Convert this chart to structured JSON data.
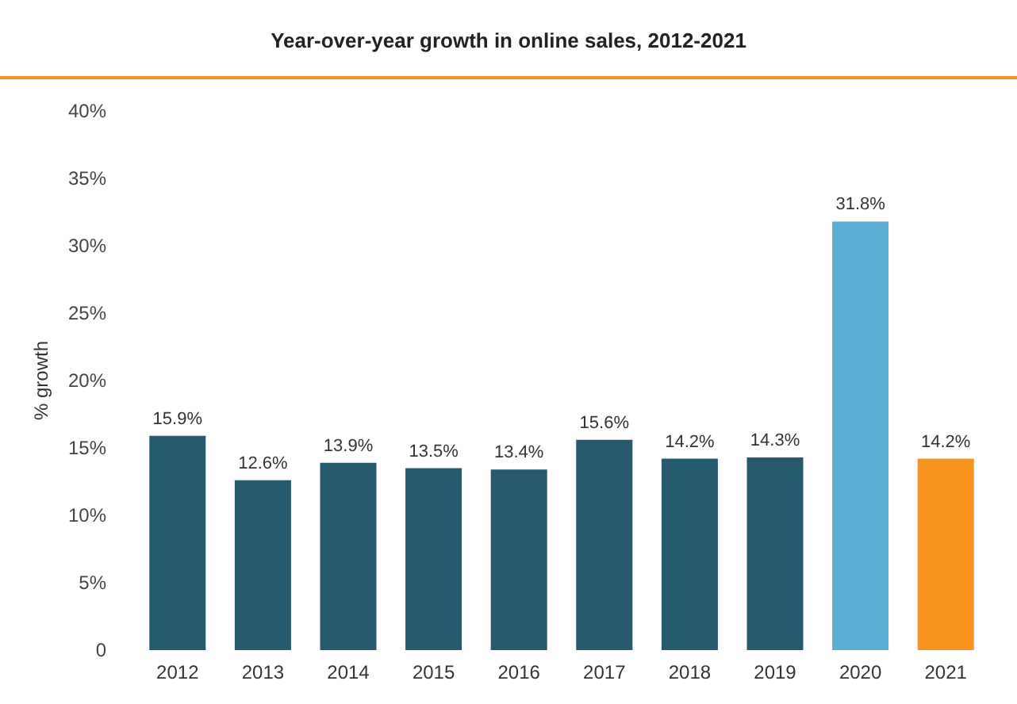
{
  "chart_data": {
    "type": "bar",
    "title": "Year-over-year growth in online sales, 2012-2021",
    "ylabel": "% growth",
    "categories": [
      "2012",
      "2013",
      "2014",
      "2015",
      "2016",
      "2017",
      "2018",
      "2019",
      "2020",
      "2021"
    ],
    "values": [
      15.9,
      12.6,
      13.9,
      13.5,
      13.4,
      15.6,
      14.2,
      14.3,
      31.8,
      14.2
    ],
    "colors": [
      "#24596e",
      "#24596e",
      "#24596e",
      "#24596e",
      "#24596e",
      "#24596e",
      "#24596e",
      "#24596e",
      "#5aaed2",
      "#f7941d"
    ],
    "value_labels": [
      "15.9%",
      "12.6%",
      "13.9%",
      "13.5%",
      "13.4%",
      "15.6%",
      "14.2%",
      "14.3%",
      "31.8%",
      "14.2%"
    ],
    "ylim": [
      0,
      40
    ],
    "yticks": [
      {
        "value": 0,
        "label": "0"
      },
      {
        "value": 5,
        "label": "5%"
      },
      {
        "value": 10,
        "label": "10%"
      },
      {
        "value": 15,
        "label": "15%"
      },
      {
        "value": 20,
        "label": "20%"
      },
      {
        "value": 25,
        "label": "25%"
      },
      {
        "value": 30,
        "label": "30%"
      },
      {
        "value": 35,
        "label": "35%"
      },
      {
        "value": 40,
        "label": "40%"
      }
    ],
    "grid": false
  }
}
